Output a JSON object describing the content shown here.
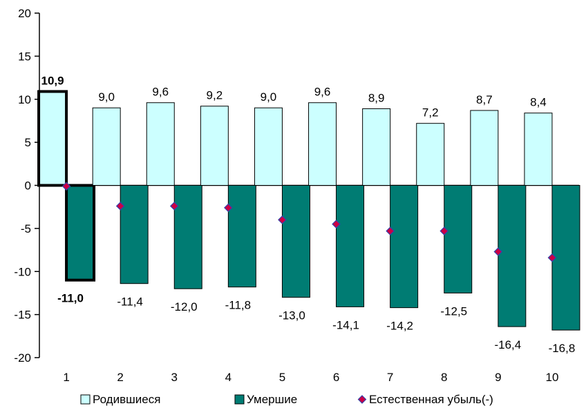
{
  "chart_data": {
    "type": "bar",
    "categories": [
      "1",
      "2",
      "3",
      "4",
      "5",
      "6",
      "7",
      "8",
      "9",
      "10"
    ],
    "series": [
      {
        "name": "Родившиеся",
        "kind": "bar",
        "color": "#ccffff",
        "values": [
          10.9,
          9.0,
          9.6,
          9.2,
          9.0,
          9.6,
          8.9,
          7.2,
          8.7,
          8.4
        ],
        "labels": [
          "10,9",
          "9,0",
          "9,6",
          "9,2",
          "9,0",
          "9,6",
          "8,9",
          "7,2",
          "8,7",
          "8,4"
        ]
      },
      {
        "name": "Умершие",
        "kind": "bar",
        "color": "#007c73",
        "values": [
          -11.0,
          -11.4,
          -12.0,
          -11.8,
          -13.0,
          -14.1,
          -14.2,
          -12.5,
          -16.4,
          -16.8
        ],
        "labels": [
          "-11,0",
          "-11,4",
          "-12,0",
          "-11,8",
          "-13,0",
          "-14,1",
          "-14,2",
          "-12,5",
          "-16,4",
          "-16,8"
        ]
      },
      {
        "name": "Естественная убыль(-)",
        "kind": "marker",
        "color": "#cc0044",
        "values": [
          -0.1,
          -2.4,
          -2.4,
          -2.6,
          -4.0,
          -4.5,
          -5.3,
          -5.3,
          -7.7,
          -8.4
        ]
      }
    ],
    "highlighted_category": "1",
    "ylim": [
      -20,
      20
    ],
    "yticks": [
      "-20",
      "-15",
      "-10",
      "-5",
      "0",
      "5",
      "10",
      "15",
      "20"
    ],
    "ytick_values": [
      -20,
      -15,
      -10,
      -5,
      0,
      5,
      10,
      15,
      20
    ],
    "grid": false,
    "legend_position": "bottom"
  }
}
